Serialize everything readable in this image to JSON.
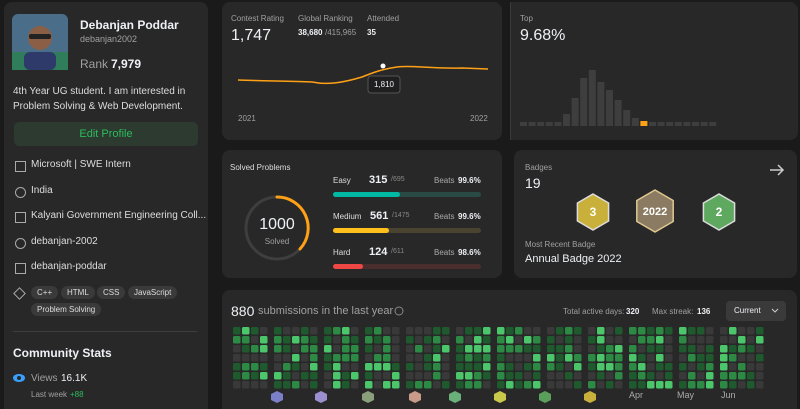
{
  "profile": {
    "name": "Debanjan Poddar",
    "username": "debanjan2002",
    "rank_label": "Rank",
    "rank": "7,979",
    "bio": "4th Year UG student. I am interested in Problem Solving & Web Development.",
    "edit_button": "Edit Profile",
    "details": [
      "Microsoft | SWE Intern",
      "India",
      "Kalyani Government Engineering Coll...",
      "debanjan-2002",
      "debanjan-poddar"
    ],
    "skills": [
      "C++",
      "HTML",
      "CSS",
      "JavaScript",
      "Problem Solving"
    ]
  },
  "community": {
    "title": "Community Stats",
    "views_label": "Views",
    "views": "16.1K",
    "last_week_label": "Last week",
    "last_week": "+88"
  },
  "contest": {
    "rating_label": "Contest Rating",
    "rating": "1,747",
    "ranking_label": "Global Ranking",
    "ranking": "38,680",
    "ranking_total": "/415,965",
    "attended_label": "Attended",
    "attended": "35",
    "tooltip": "1,810",
    "x_start": "2021",
    "x_end": "2022",
    "top_label": "Top",
    "top": "9.68%"
  },
  "solved": {
    "title": "Solved Problems",
    "total": "1000",
    "total_label": "Solved",
    "levels": [
      {
        "name": "Easy",
        "solved": "315",
        "total": "/695",
        "beats_label": "Beats",
        "beats": "99.6%"
      },
      {
        "name": "Medium",
        "solved": "561",
        "total": "/1475",
        "beats_label": "Beats",
        "beats": "99.6%"
      },
      {
        "name": "Hard",
        "solved": "124",
        "total": "/611",
        "beats_label": "Beats",
        "beats": "98.6%"
      }
    ]
  },
  "badges": {
    "label": "Badges",
    "count": "19",
    "icons": [
      "3",
      "2022",
      "2"
    ],
    "recent_label": "Most Recent Badge",
    "recent": "Annual Badge 2022"
  },
  "submissions": {
    "count": "880",
    "text": "submissions in the last year",
    "active_label": "Total active days:",
    "active": "320",
    "streak_label": "Max streak:",
    "streak": "136",
    "select": "Current",
    "months": [
      "Apr",
      "May",
      "Jun"
    ]
  }
}
